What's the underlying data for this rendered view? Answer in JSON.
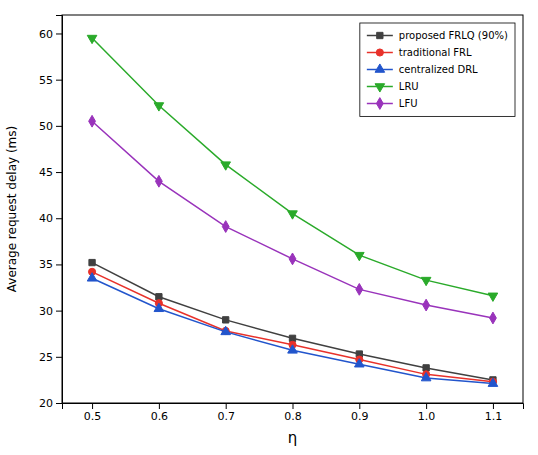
{
  "chart_data": {
    "type": "line",
    "x": [
      0.5,
      0.6,
      0.7,
      0.8,
      0.9,
      1.0,
      1.1
    ],
    "series": [
      {
        "name": "proposed FRLQ (90%)",
        "color": "#404040",
        "marker": "square",
        "values": [
          35.2,
          31.5,
          29.0,
          27.0,
          25.3,
          23.8,
          22.5
        ]
      },
      {
        "name": "traditional FRL",
        "color": "#e8312a",
        "marker": "circle",
        "values": [
          34.2,
          30.8,
          27.8,
          26.3,
          24.7,
          23.1,
          22.3
        ]
      },
      {
        "name": "centralized DRL",
        "color": "#2255cc",
        "marker": "triangle-up",
        "values": [
          33.5,
          30.2,
          27.7,
          25.7,
          24.2,
          22.7,
          22.1
        ]
      },
      {
        "name": "LRU",
        "color": "#2aaa2a",
        "marker": "triangle-down",
        "values": [
          59.5,
          52.2,
          45.8,
          40.5,
          36.0,
          33.3,
          31.6
        ]
      },
      {
        "name": "LFU",
        "color": "#9933bb",
        "marker": "diamond",
        "values": [
          50.5,
          44.0,
          39.1,
          35.6,
          32.3,
          30.6,
          29.2
        ]
      }
    ],
    "x_label": "η",
    "y_label": "Average request delay (ms)",
    "xlim": [
      0.455,
      1.145
    ],
    "ylim": [
      20,
      62
    ],
    "xticks": [
      0.5,
      0.6,
      0.7,
      0.8,
      0.9,
      {
        "value": 1.0,
        "label": "1.0"
      },
      1.1
    ],
    "yticks": [
      20,
      25,
      30,
      35,
      40,
      45,
      50,
      55,
      60
    ],
    "grid": false,
    "legend": "upper right"
  }
}
